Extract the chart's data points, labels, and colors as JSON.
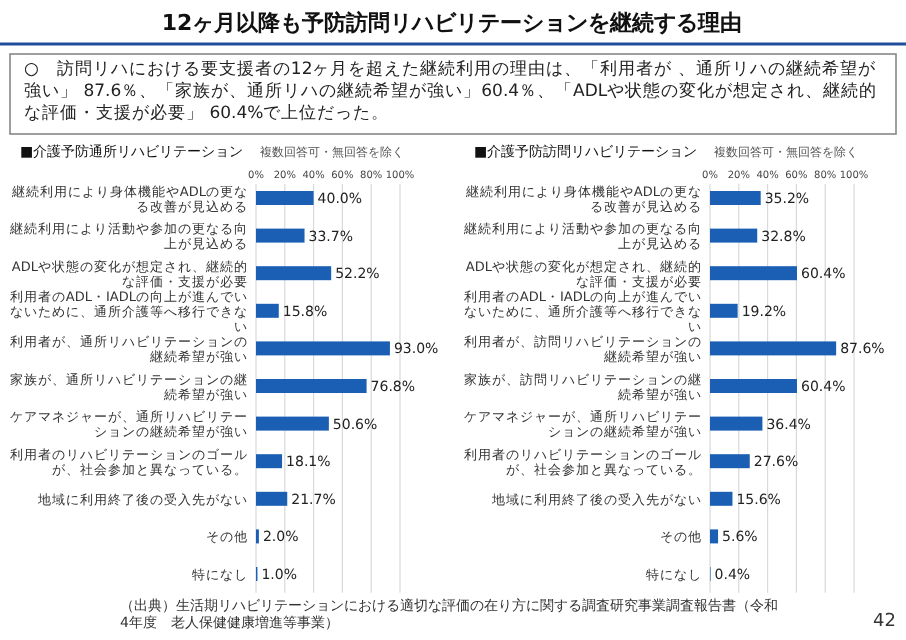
{
  "chart_data": [
    {
      "type": "bar",
      "orientation": "horizontal",
      "title": "■介護予防通所リハビリテーション",
      "subtitle": "複数回答可・無回答を除く",
      "annotations": [
        "12ヶ月以降も予防訪問リハビリテーションを継続する理由",
        "○　訪問リハにおける要支援者の12ヶ月を超えた継続利用の理由は、「利用者が 、通所リハの継続希望が強い」 87.6％、「家族が、通所リハの継続希望が強い」60.4％、「ADLや状態の変化が想定され、継続的な評価・支援が必要」 60.4%で上位だった。"
      ],
      "categories": [
        "継続利用により身体機能やADLの更なる改善が見込める",
        "継続利用により活動や参加の更なる向上が見込める",
        "ADLや状態の変化が想定され、継続的な評価・支援が必要",
        "利用者のADL・IADLの向上が進んでいないために、通所介護等へ移行できない",
        "利用者が、通所リハビリテーションの継続希望が強い",
        "家族が、通所リハビリテーションの継続希望が強い",
        "ケアマネジャーが、通所リハビリテーションの継続希望が強い",
        "利用者のリハビリテーションのゴールが、社会参加と異なっている。",
        "地域に利用終了後の受入先がない",
        "その他",
        "特になし"
      ],
      "values": [
        40.0,
        33.7,
        52.2,
        15.8,
        93.0,
        76.8,
        50.6,
        18.1,
        21.7,
        2.0,
        1.0
      ],
      "value_labels": [
        "40.0%",
        "33.7%",
        "52.2%",
        "15.8%",
        "93.0%",
        "76.8%",
        "50.6%",
        "18.1%",
        "21.7%",
        "2.0%",
        "1.0%"
      ],
      "color": "#1a5fb4",
      "xlim": [
        0,
        100
      ],
      "xticks": [
        {
          "value": 0,
          "label": "0%"
        },
        {
          "value": 20,
          "label": "20%"
        },
        {
          "value": 40,
          "label": "40%"
        },
        {
          "value": 60,
          "label": "60%"
        },
        {
          "value": 80,
          "label": "80%"
        },
        {
          "value": 100,
          "label": "100%"
        }
      ],
      "grid": "x"
    },
    {
      "type": "bar",
      "orientation": "horizontal",
      "title": "■介護予防訪問リハビリテーション",
      "subtitle": "複数回答可・無回答を除く",
      "annotations": [
        "（出典）生活期リハビリテーションにおける適切な評価の在り方に関する調査研究事業調査報告書（令和4年度　老人保健健康増進等事業）",
        "42"
      ],
      "categories": [
        "継続利用により身体機能やADLの更なる改善が見込める",
        "継続利用により活動や参加の更なる向上が見込める",
        "ADLや状態の変化が想定され、継続的な評価・支援が必要",
        "利用者のADL・IADLの向上が進んでいないために、通所介護等へ移行できない",
        "利用者が、訪問リハビリテーションの継続希望が強い",
        "家族が、訪問リハビリテーションの継続希望が強い",
        "ケアマネジャーが、通所リハビリテーションの継続希望が強い",
        "利用者のリハビリテーションのゴールが、社会参加と異なっている。",
        "地域に利用終了後の受入先がない",
        "その他",
        "特になし"
      ],
      "values": [
        35.2,
        32.8,
        60.4,
        19.2,
        87.6,
        60.4,
        36.4,
        27.6,
        15.6,
        5.6,
        0.4
      ],
      "value_labels": [
        "35.2%",
        "32.8%",
        "60.4%",
        "19.2%",
        "87.6%",
        "60.4%",
        "36.4%",
        "27.6%",
        "15.6%",
        "5.6%",
        "0.4%"
      ],
      "color": "#1a5fb4",
      "xlim": [
        0,
        100
      ],
      "xticks": [
        {
          "value": 0,
          "label": "0%"
        },
        {
          "value": 20,
          "label": "20%"
        },
        {
          "value": 40,
          "label": "40%"
        },
        {
          "value": 60,
          "label": "60%"
        },
        {
          "value": 80,
          "label": "80%"
        },
        {
          "value": 100,
          "label": "100%"
        }
      ],
      "grid": "x"
    }
  ]
}
